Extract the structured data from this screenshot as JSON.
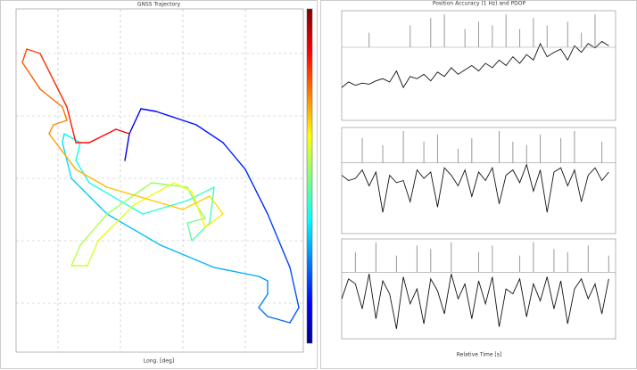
{
  "chart_data": [
    {
      "type": "line",
      "title": "GNSS Trajectory",
      "x_label": "Long. [deg]",
      "colormap": "jet",
      "xlim": [
        0,
        322
      ],
      "ylim": [
        0,
        385
      ],
      "series": [
        {
          "x": [
            122,
            127,
            140,
            157,
            202,
            232,
            257,
            282,
            307,
            317,
            307,
            282,
            272,
            282,
            282,
            272,
            222,
            162,
            102,
            62,
            52,
            54,
            72,
            67,
            82,
            142,
            192,
            222,
            217,
            197,
            192,
            212,
            202,
            192,
            152,
            102,
            72,
            62,
            80,
            92,
            132,
            177,
            197,
            212,
            232,
            217,
            187,
            102,
            67,
            52,
            37,
            42,
            57,
            52,
            27,
            7,
            12,
            27,
            42,
            57,
            67,
            82,
            112,
            127
          ],
          "values": [
            215,
            245,
            273,
            270,
            255,
            235,
            205,
            155,
            95,
            50,
            33,
            40,
            50,
            65,
            80,
            85,
            95,
            120,
            155,
            195,
            235,
            245,
            235,
            215,
            190,
            155,
            170,
            185,
            145,
            125,
            145,
            150,
            165,
            185,
            190,
            155,
            120,
            97,
            97,
            125,
            165,
            190,
            180,
            140,
            155,
            175,
            160,
            185,
            205,
            225,
            245,
            255,
            260,
            275,
            295,
            325,
            340,
            335,
            305,
            275,
            235,
            235,
            250,
            245
          ]
        }
      ]
    },
    {
      "type": "line",
      "title": "Position Accuracy (1 Hz) and PDOP",
      "xlim": [
        0,
        40
      ],
      "ylim": [
        0,
        100
      ],
      "y2lim": [
        -200,
        100
      ],
      "series": [
        {
          "color": "#111",
          "x": [
            0,
            1,
            2,
            3,
            4,
            5,
            6,
            7,
            8,
            9,
            10,
            11,
            12,
            13,
            14,
            15,
            16,
            17,
            18,
            19,
            20,
            21,
            22,
            23,
            24,
            25,
            26,
            27,
            28,
            29,
            30,
            31,
            32,
            33,
            34,
            35,
            36,
            37,
            38,
            39
          ],
          "values": [
            30,
            35,
            32,
            34,
            33,
            36,
            38,
            35,
            45,
            30,
            40,
            38,
            42,
            36,
            44,
            40,
            48,
            42,
            46,
            50,
            45,
            52,
            48,
            55,
            50,
            58,
            52,
            60,
            55,
            70,
            58,
            62,
            65,
            55,
            68,
            62,
            70,
            66,
            72,
            68
          ]
        },
        {
          "color": "#999",
          "axis": "y2",
          "x": [
            4,
            10,
            13,
            15,
            18,
            20,
            22,
            24,
            26,
            28,
            30,
            33,
            35,
            37
          ],
          "values": [
            40,
            60,
            80,
            90,
            50,
            70,
            60,
            90,
            50,
            80,
            60,
            70,
            40,
            90
          ]
        }
      ]
    },
    {
      "type": "line",
      "xlim": [
        0,
        40
      ],
      "ylim": [
        0,
        100
      ],
      "y2lim": [
        -200,
        100
      ],
      "series": [
        {
          "color": "#111",
          "x": [
            0,
            1,
            2,
            3,
            4,
            5,
            6,
            7,
            8,
            9,
            10,
            11,
            12,
            13,
            14,
            15,
            16,
            17,
            18,
            19,
            20,
            21,
            22,
            23,
            24,
            25,
            26,
            27,
            28,
            29,
            30,
            31,
            32,
            33,
            34,
            35,
            36,
            37,
            38,
            39
          ],
          "values": [
            55,
            50,
            52,
            60,
            45,
            58,
            20,
            55,
            48,
            50,
            30,
            60,
            52,
            58,
            25,
            62,
            55,
            45,
            60,
            35,
            58,
            50,
            62,
            28,
            55,
            60,
            48,
            65,
            40,
            60,
            20,
            58,
            62,
            45,
            60,
            30,
            55,
            62,
            50,
            58
          ]
        },
        {
          "color": "#999",
          "axis": "y2",
          "x": [
            3,
            6,
            9,
            12,
            14,
            17,
            19,
            23,
            25,
            27,
            29,
            32,
            34,
            38
          ],
          "values": [
            70,
            50,
            90,
            60,
            80,
            40,
            70,
            90,
            60,
            50,
            80,
            70,
            90,
            60
          ]
        }
      ]
    },
    {
      "type": "line",
      "x_label": "Relative Time [s]",
      "xlim": [
        0,
        40
      ],
      "ylim": [
        0,
        100
      ],
      "y2lim": [
        -200,
        100
      ],
      "series": [
        {
          "color": "#111",
          "x": [
            0,
            1,
            2,
            3,
            4,
            5,
            6,
            7,
            8,
            9,
            10,
            11,
            12,
            13,
            14,
            15,
            16,
            17,
            18,
            19,
            20,
            21,
            22,
            23,
            24,
            25,
            26,
            27,
            28,
            29,
            30,
            31,
            32,
            33,
            34,
            35,
            36,
            37,
            38,
            39
          ],
          "values": [
            40,
            60,
            55,
            30,
            65,
            20,
            58,
            45,
            10,
            62,
            35,
            50,
            15,
            60,
            48,
            25,
            65,
            40,
            55,
            20,
            58,
            35,
            62,
            12,
            50,
            45,
            60,
            22,
            55,
            38,
            62,
            30,
            58,
            15,
            50,
            60,
            40,
            55,
            25,
            60
          ]
        },
        {
          "color": "#999",
          "axis": "y2",
          "x": [
            2,
            5,
            8,
            11,
            13,
            16,
            20,
            22,
            26,
            28,
            31,
            33,
            36,
            39
          ],
          "values": [
            60,
            90,
            50,
            80,
            70,
            90,
            60,
            80,
            50,
            90,
            70,
            60,
            80,
            50
          ]
        }
      ]
    }
  ]
}
